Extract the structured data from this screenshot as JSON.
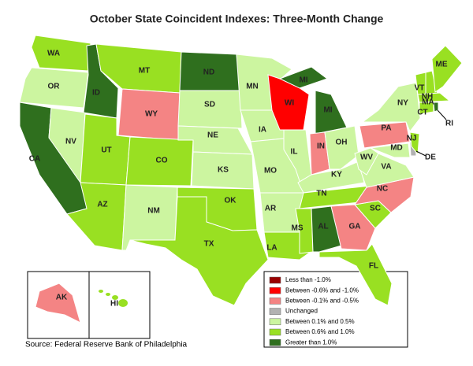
{
  "title": "October State Coincident Indexes: Three-Month Change",
  "source": "Source: Federal Reserve Bank of Philadelphia",
  "legend": [
    {
      "label": "Less than -1.0%",
      "color": "#990000"
    },
    {
      "label": "Between -0.6% and -1.0%",
      "color": "#ff0000"
    },
    {
      "label": "Between -0.1% and -0.5%",
      "color": "#f48484"
    },
    {
      "label": "Unchanged",
      "color": "#b2b2b2"
    },
    {
      "label": "Between 0.1% and 0.5%",
      "color": "#ccf5a0"
    },
    {
      "label": "Between 0.6% and 1.0%",
      "color": "#99e022"
    },
    {
      "label": "Greater than 1.0%",
      "color": "#2f6f1e"
    }
  ],
  "states": [
    {
      "abbr": "WA",
      "category": 5
    },
    {
      "abbr": "OR",
      "category": 4
    },
    {
      "abbr": "CA",
      "category": 6
    },
    {
      "abbr": "NV",
      "category": 4
    },
    {
      "abbr": "ID",
      "category": 6
    },
    {
      "abbr": "MT",
      "category": 5
    },
    {
      "abbr": "WY",
      "category": 2
    },
    {
      "abbr": "UT",
      "category": 5
    },
    {
      "abbr": "CO",
      "category": 5
    },
    {
      "abbr": "AZ",
      "category": 5
    },
    {
      "abbr": "NM",
      "category": 4
    },
    {
      "abbr": "ND",
      "category": 6
    },
    {
      "abbr": "SD",
      "category": 4
    },
    {
      "abbr": "NE",
      "category": 4
    },
    {
      "abbr": "KS",
      "category": 4
    },
    {
      "abbr": "OK",
      "category": 5
    },
    {
      "abbr": "TX",
      "category": 5
    },
    {
      "abbr": "MN",
      "category": 4
    },
    {
      "abbr": "IA",
      "category": 4
    },
    {
      "abbr": "MO",
      "category": 4
    },
    {
      "abbr": "AR",
      "category": 4
    },
    {
      "abbr": "LA",
      "category": 5
    },
    {
      "abbr": "WI",
      "category": 1
    },
    {
      "abbr": "MI",
      "category": 6
    },
    {
      "abbr": "MI",
      "category": 6
    },
    {
      "abbr": "IL",
      "category": 4
    },
    {
      "abbr": "IN",
      "category": 2
    },
    {
      "abbr": "OH",
      "category": 4
    },
    {
      "abbr": "KY",
      "category": 4
    },
    {
      "abbr": "TN",
      "category": 5
    },
    {
      "abbr": "MS",
      "category": 5
    },
    {
      "abbr": "AL",
      "category": 6
    },
    {
      "abbr": "GA",
      "category": 2
    },
    {
      "abbr": "FL",
      "category": 5
    },
    {
      "abbr": "SC",
      "category": 5
    },
    {
      "abbr": "NC",
      "category": 2
    },
    {
      "abbr": "VA",
      "category": 4
    },
    {
      "abbr": "WV",
      "category": 4
    },
    {
      "abbr": "PA",
      "category": 2
    },
    {
      "abbr": "NY",
      "category": 4
    },
    {
      "abbr": "MD",
      "category": 4
    },
    {
      "abbr": "DE",
      "category": 3
    },
    {
      "abbr": "NJ",
      "category": 5
    },
    {
      "abbr": "VT",
      "category": 5
    },
    {
      "abbr": "NH",
      "category": 5
    },
    {
      "abbr": "ME",
      "category": 5
    },
    {
      "abbr": "MA",
      "category": 5
    },
    {
      "abbr": "CT",
      "category": 5
    },
    {
      "abbr": "RI",
      "category": 6
    },
    {
      "abbr": "AK",
      "category": 2
    },
    {
      "abbr": "HI",
      "category": 5
    }
  ]
}
